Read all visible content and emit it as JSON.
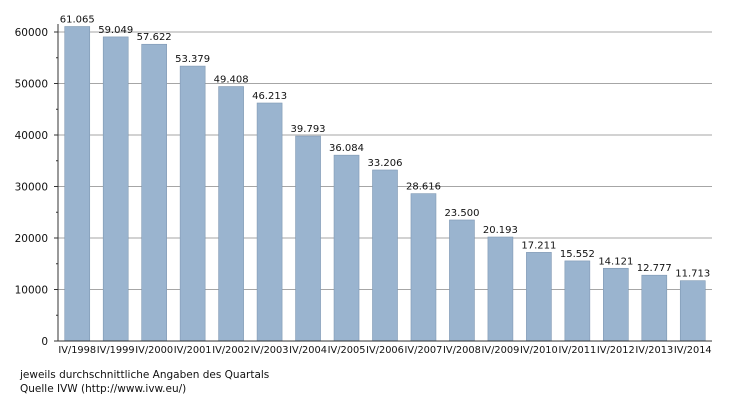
{
  "chart_data": {
    "type": "bar",
    "categories": [
      "IV/1998",
      "IV/1999",
      "IV/2000",
      "IV/2001",
      "IV/2002",
      "IV/2003",
      "IV/2004",
      "IV/2005",
      "IV/2006",
      "IV/2007",
      "IV/2008",
      "IV/2009",
      "IV/2010",
      "IV/2011",
      "IV/2012",
      "IV/2013",
      "IV/2014"
    ],
    "values": [
      61065,
      59049,
      57622,
      53379,
      49408,
      46213,
      39793,
      36084,
      33206,
      28616,
      23500,
      20193,
      17211,
      15552,
      14121,
      12777,
      11713
    ],
    "value_labels": [
      "61.065",
      "59.049",
      "57.622",
      "53.379",
      "49.408",
      "46.213",
      "39.793",
      "36.084",
      "33.206",
      "28.616",
      "23.500",
      "20.193",
      "17.211",
      "15.552",
      "14.121",
      "12.777",
      "11.713"
    ],
    "ylim": [
      0,
      60000
    ],
    "yticks": [
      0,
      10000,
      20000,
      30000,
      40000,
      50000,
      60000
    ],
    "grid": true,
    "bar_color": "#9ab4cf",
    "bar_edge_color": "#7f98b3",
    "grid_color": "#a6a6a6"
  },
  "notes": {
    "line1": "jeweils durchschnittliche Angaben des Quartals",
    "line2": "Quelle IVW (http://www.ivw.eu/)"
  }
}
